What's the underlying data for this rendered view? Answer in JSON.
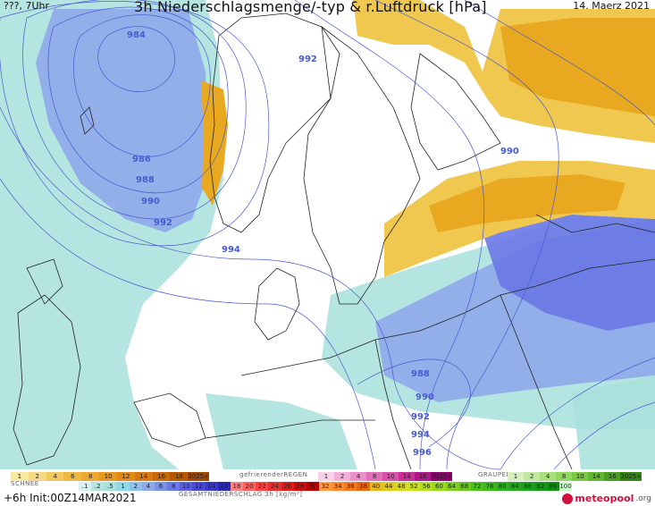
{
  "header": {
    "run_label": "???, 7Uhr",
    "title": "3h Niederschlagsmenge/-typ & r.Luftdruck [hPa]",
    "date": "14. Maerz 2021"
  },
  "isobars": [
    "984",
    "986",
    "988",
    "990",
    "992",
    "992",
    "994",
    "990",
    "988",
    "990",
    "992",
    "994",
    "996"
  ],
  "legend": {
    "schnee_label": "SCHNEE",
    "gefrierender_label": "gefrierenderREGEN",
    "graupel_label": "GRAUPEL",
    "gesamt_label": "GESAMTNIEDERSCHLAG 3h [kg/m²]",
    "orange_values": [
      "1",
      "2",
      "4",
      "6",
      "8",
      "10",
      "12",
      "14",
      "16",
      "18",
      "2025+"
    ],
    "pink_values": [
      "1",
      "2",
      "4",
      "8",
      "10",
      "14",
      "16",
      "2025+"
    ],
    "green_values": [
      "1",
      "2",
      "4",
      "8",
      "10",
      "14",
      "16",
      "2025+"
    ],
    "total_values": [
      ".1",
      ".2",
      ".5",
      "1",
      "2",
      "4",
      "6",
      "8",
      "10",
      "12",
      "14",
      "16",
      "18",
      "20",
      "22",
      "24",
      "26",
      "28",
      "30",
      "32",
      "34",
      "36",
      "38",
      "40",
      "44",
      "48",
      "52",
      "56",
      "60",
      "64",
      "68",
      "72",
      "76",
      "80",
      "84",
      "88",
      "92",
      "96",
      "100"
    ],
    "colors": {
      "snow": "#e8a820",
      "freezing": "#e060b0",
      "graupel": "#80c030",
      "rain_light": "#a8e0dc",
      "rain_mid": "#8fa8ea",
      "rain_heavy": "#5a60e0"
    }
  },
  "footer": {
    "init": "+6h Init:00Z14MAR2021",
    "logo_main": "meteopool",
    "logo_tld": ".org"
  }
}
